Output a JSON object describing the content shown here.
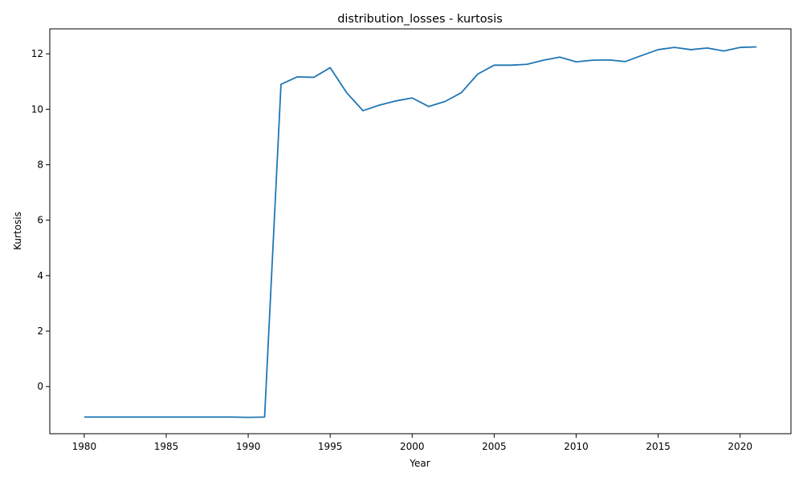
{
  "chart_data": {
    "type": "line",
    "title": "distribution_losses - kurtosis",
    "xlabel": "Year",
    "ylabel": "Kurtosis",
    "xlim": [
      1977.9,
      2023.1
    ],
    "ylim": [
      -1.7,
      12.9
    ],
    "xticks": [
      1980,
      1985,
      1990,
      1995,
      2000,
      2005,
      2010,
      2015,
      2020
    ],
    "yticks": [
      0,
      2,
      4,
      6,
      8,
      10,
      12
    ],
    "grid": false,
    "series": [
      {
        "color": "#1f77b4",
        "x": [
          1980,
          1981,
          1982,
          1983,
          1984,
          1985,
          1986,
          1987,
          1988,
          1989,
          1990,
          1991,
          1992,
          1993,
          1994,
          1995,
          1996,
          1997,
          1998,
          1999,
          2000,
          2001,
          2002,
          2003,
          2004,
          2005,
          2006,
          2007,
          2008,
          2009,
          2010,
          2011,
          2012,
          2013,
          2014,
          2015,
          2016,
          2017,
          2018,
          2019,
          2020,
          2021
        ],
        "y": [
          -1.1,
          -1.1,
          -1.1,
          -1.1,
          -1.1,
          -1.1,
          -1.1,
          -1.1,
          -1.1,
          -1.1,
          -1.11,
          -1.1,
          10.9,
          11.17,
          11.15,
          11.5,
          10.6,
          9.95,
          10.15,
          10.3,
          10.41,
          10.1,
          10.28,
          10.6,
          11.27,
          11.59,
          11.59,
          11.62,
          11.77,
          11.88,
          11.71,
          11.77,
          11.78,
          11.72,
          11.94,
          12.15,
          12.23,
          12.15,
          12.21,
          12.1,
          12.23,
          12.25
        ]
      }
    ]
  }
}
